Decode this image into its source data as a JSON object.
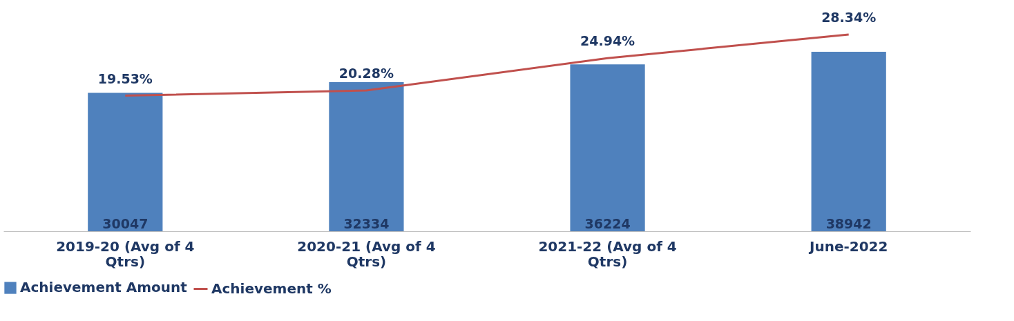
{
  "chart_data": {
    "type": "bar",
    "categories": [
      "2019-20 (Avg of 4 Qtrs)",
      "2020-21 (Avg of 4 Qtrs)",
      "2021-22 (Avg of 4 Qtrs)",
      "June-2022"
    ],
    "series": [
      {
        "name": "Achievement Amount",
        "color": "#4f81bd",
        "values": [
          30047,
          32334,
          36224,
          38942
        ],
        "value_labels": [
          "30047",
          "32334",
          "36224",
          "38942"
        ]
      },
      {
        "name": "Achievement %",
        "type": "line",
        "axis": "y2",
        "color": "#c0504d",
        "values": [
          19.53,
          20.28,
          24.94,
          28.34
        ],
        "value_labels": [
          "19.53%",
          "20.28%",
          "24.94%",
          "28.34%"
        ]
      }
    ],
    "legend": "bottom",
    "grid": false,
    "tick_labels": "x",
    "marker": "none"
  }
}
